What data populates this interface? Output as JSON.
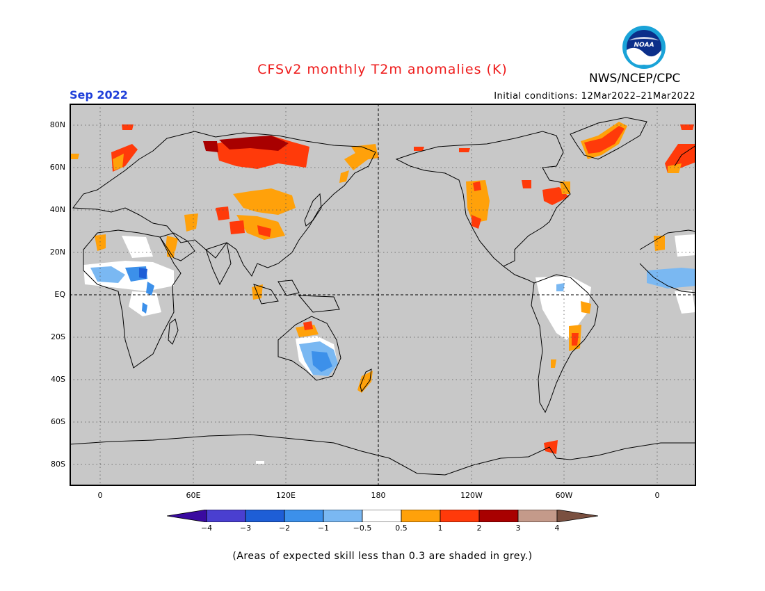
{
  "header": {
    "title": "CFSv2 monthly T2m anomalies (K)",
    "valid_month": "Sep 2022",
    "initial_conditions": "Initial conditions: 12Mar2022–21Mar2022",
    "agency": "NWS/NCEP/CPC",
    "logo_text": "NOAA"
  },
  "map": {
    "projection": "cylindrical equidistant, centered 180",
    "lat_labels": [
      "80N",
      "60N",
      "40N",
      "20N",
      "EQ",
      "20S",
      "40S",
      "60S",
      "80S"
    ],
    "lon_labels": [
      "0",
      "60E",
      "120E",
      "180",
      "120W",
      "60W",
      "0"
    ],
    "background_color": "#c8c8c8",
    "grid": "dotted",
    "anomaly_regions": [
      {
        "region": "Central Siberia",
        "category": "2 to 3"
      },
      {
        "region": "Northern Siberia",
        "category": "1 to 2"
      },
      {
        "region": "Mongolia / Northern China",
        "category": "0.5 to 1"
      },
      {
        "region": "Western United States",
        "category": "0.5 to 1"
      },
      {
        "region": "Greenland",
        "category": "1 to 2"
      },
      {
        "region": "Scandinavia",
        "category": "1 to 2"
      },
      {
        "region": "Eastern Brazil",
        "category": "0.5 to 2"
      },
      {
        "region": "Southeastern Australia",
        "category": "-1 to -0.5"
      },
      {
        "region": "Sahel / West Africa",
        "category": "-2 to -0.5"
      },
      {
        "region": "New Zealand",
        "category": "0.5 to 1"
      },
      {
        "region": "Antarctic Peninsula",
        "category": "1 to 2"
      }
    ]
  },
  "colorbar": {
    "labels": [
      "−4",
      "−3",
      "−2",
      "−1",
      "−0.5",
      "0.5",
      "1",
      "2",
      "3",
      "4"
    ],
    "colors": [
      "#3a0aa0",
      "#4a3fd0",
      "#1e5ed6",
      "#3c90ea",
      "#7ab8f2",
      "#ffffff",
      "#ffa10a",
      "#ff3a0a",
      "#a80000",
      "#c49a8a",
      "#7a5040"
    ]
  },
  "footnote": "(Areas of expected skill less than 0.3 are shaded in grey.)"
}
